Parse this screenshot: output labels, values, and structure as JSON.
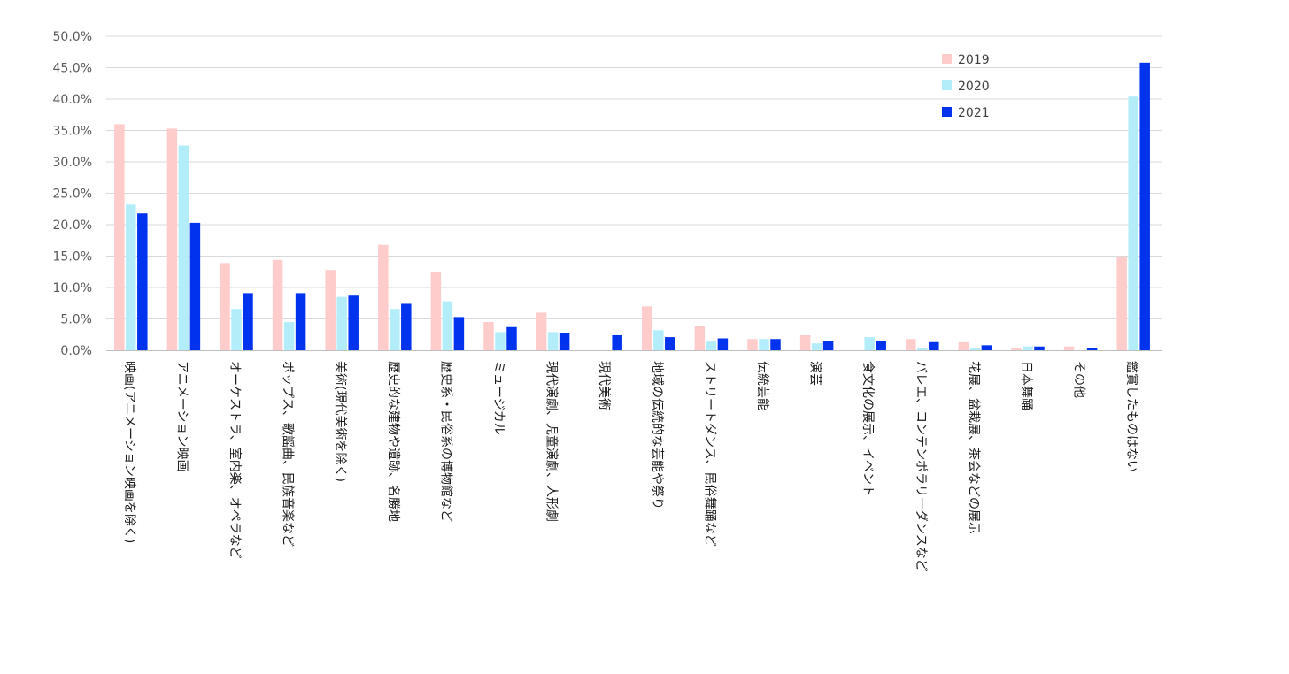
{
  "chart_data": {
    "type": "bar",
    "orientation": "vertical",
    "title": "",
    "xlabel": "",
    "ylabel": "",
    "ylim": [
      0,
      50
    ],
    "y_tick_format": "percent_1dp",
    "y_ticks": [
      "0.0%",
      "5.0%",
      "10.0%",
      "15.0%",
      "20.0%",
      "25.0%",
      "30.0%",
      "35.0%",
      "40.0%",
      "45.0%",
      "50.0%"
    ],
    "grid": true,
    "legend_position": "top-right",
    "categories": [
      "映画(アニメーション映画を除く)",
      "アニメーション映画",
      "オーケストラ、室内楽、オペラなど",
      "ポップス、歌謡曲、民族音楽など",
      "美術(現代美術を除く)",
      "歴史的な建物や遺跡、名勝地",
      "歴史系・民俗系の博物館など",
      "ミュージカル",
      "現代演劇、児童演劇、人形劇",
      "現代美術",
      "地域の伝統的な芸能や祭り",
      "ストリートダンス、民俗舞踊など",
      "伝統芸能",
      "演芸",
      "食文化の展示、イベント",
      "バレエ、コンテンポラリーダンスなど",
      "花展、盆栽展、茶会などの展示",
      "日本舞踊",
      "その他",
      "鑑賞したものはない"
    ],
    "series": [
      {
        "name": "2019",
        "color": "#FFCCCC",
        "values": [
          36.0,
          35.3,
          13.9,
          14.4,
          12.8,
          16.8,
          12.4,
          4.5,
          6.0,
          0.0,
          7.0,
          3.8,
          1.8,
          2.4,
          0.0,
          1.8,
          1.3,
          0.4,
          0.6,
          14.8
        ]
      },
      {
        "name": "2020",
        "color": "#B3EDFA",
        "values": [
          23.2,
          32.6,
          6.6,
          4.5,
          8.5,
          6.6,
          7.8,
          2.9,
          2.9,
          0.0,
          3.2,
          1.4,
          1.8,
          1.1,
          2.1,
          0.4,
          0.3,
          0.6,
          0.0,
          40.4
        ]
      },
      {
        "name": "2021",
        "color": "#0033EE",
        "values": [
          21.8,
          20.3,
          9.1,
          9.1,
          8.7,
          7.4,
          5.3,
          3.7,
          2.8,
          2.4,
          2.1,
          1.9,
          1.8,
          1.5,
          1.5,
          1.3,
          0.8,
          0.6,
          0.3,
          45.8
        ]
      }
    ]
  }
}
